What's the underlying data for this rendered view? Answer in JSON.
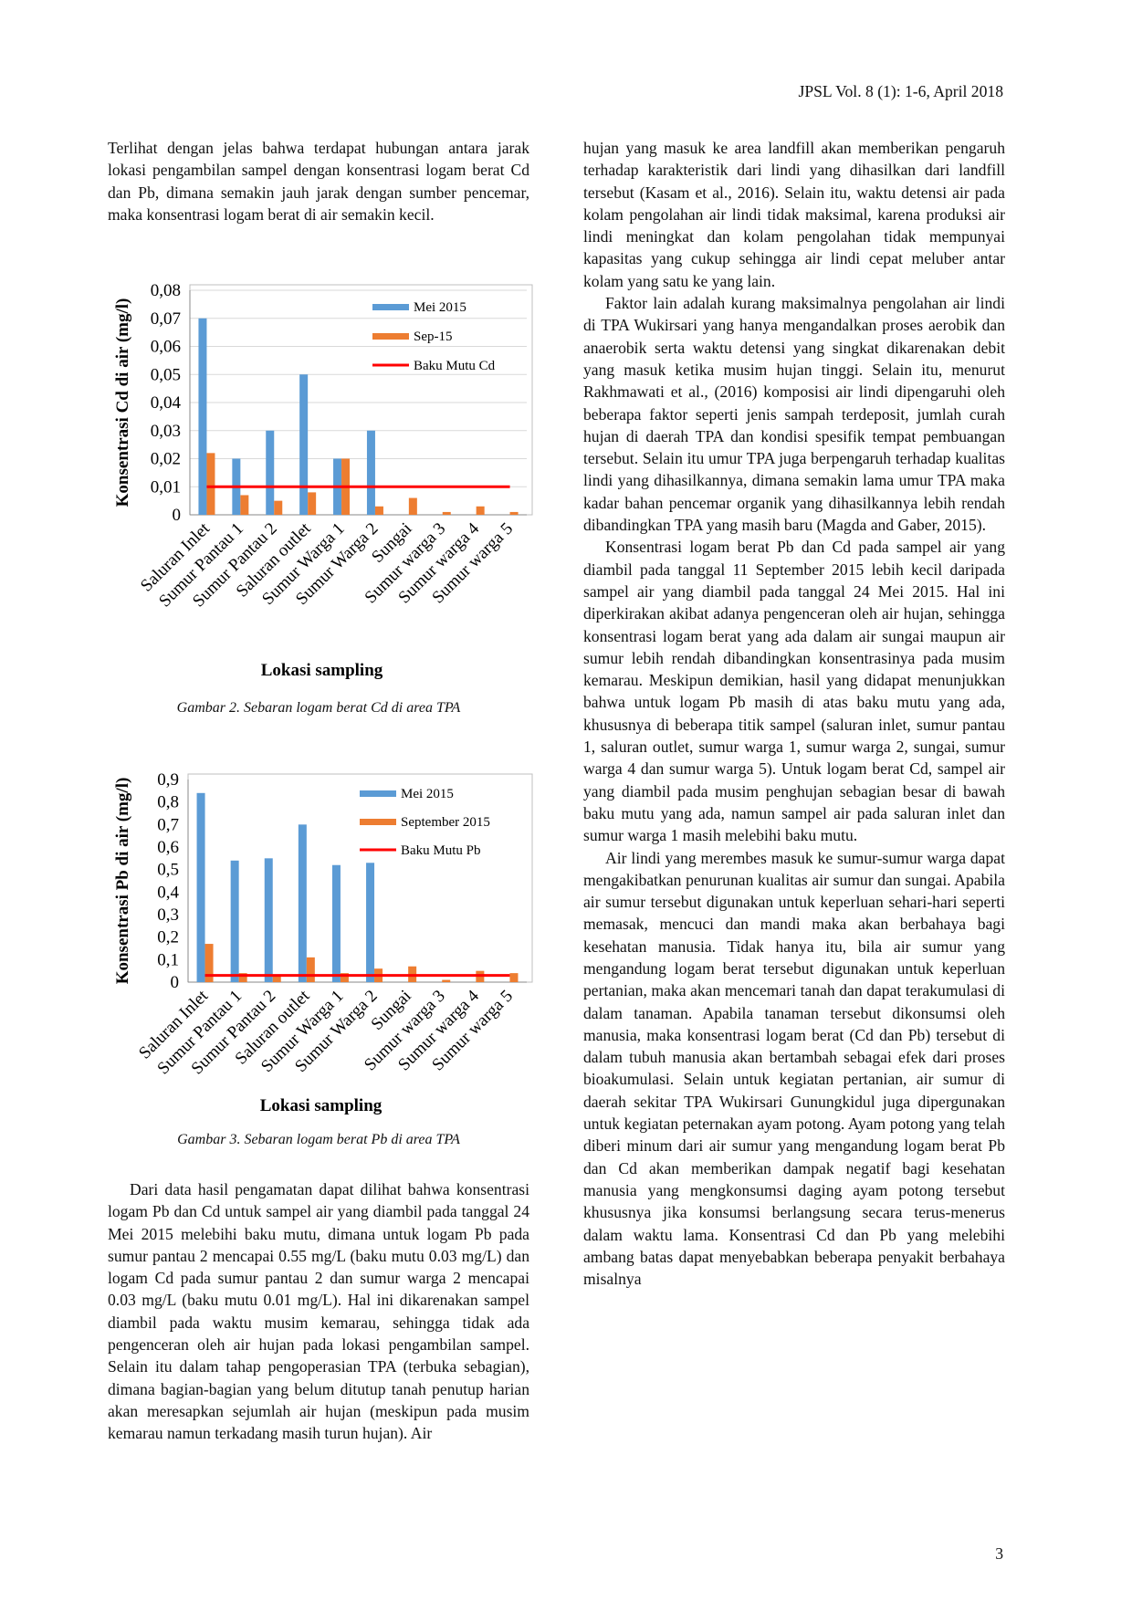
{
  "header": {
    "journal": "JPSL Vol. 8 (1): 1-6, April 2018"
  },
  "left_column": {
    "paragraphs": [
      "Terlihat dengan jelas bahwa terdapat hubungan antara jarak lokasi pengambilan sampel dengan konsentrasi logam berat Cd dan Pb, dimana semakin jauh jarak dengan sumber pencemar, maka konsentrasi logam berat di air semakin kecil.",
      "Dari data hasil pengamatan dapat dilihat bahwa konsentrasi logam Pb dan Cd untuk sampel air yang diambil pada tanggal 24 Mei 2015 melebihi baku mutu, dimana untuk logam Pb pada sumur pantau 2 mencapai 0.55 mg/L (baku mutu 0.03 mg/L) dan logam Cd pada sumur pantau 2 dan sumur warga 2 mencapai 0.03 mg/L (baku mutu 0.01 mg/L). Hal ini dikarenakan sampel diambil pada waktu musim kemarau, sehingga tidak ada pengenceran oleh air hujan pada lokasi pengambilan sampel. Selain itu dalam tahap pengoperasian TPA (terbuka sebagian), dimana bagian-bagian yang belum ditutup tanah penutup harian akan meresapkan sejumlah air hujan (meskipun pada musim kemarau namun terkadang masih turun hujan). Air"
    ]
  },
  "chart_data": [
    {
      "type": "bar",
      "ylabel": "Konsentrasi Cd di air (mg/l)",
      "xlabel": "Lokasi sampling",
      "caption": "Gambar 2. Sebaran logam berat Cd di area TPA",
      "categories": [
        "Saluran Inlet",
        "Sumur Pantau 1",
        "Sumur Pantau 2",
        "Saluran outlet",
        "Sumur Warga 1",
        "Sumur Warga 2",
        "Sungai",
        "Sumur warga 3",
        "Sumur warga 4",
        "Sumur warga 5"
      ],
      "series": [
        {
          "name": "Mei 2015",
          "type": "bar",
          "color": "#5b9bd5",
          "values": [
            0.07,
            0.02,
            0.03,
            0.05,
            0.02,
            0.03,
            null,
            null,
            null,
            null
          ]
        },
        {
          "name": "Sep-15",
          "type": "bar",
          "color": "#ed7d31",
          "values": [
            0.022,
            0.007,
            0.005,
            0.008,
            0.02,
            0.003,
            0.006,
            0.001,
            0.003,
            0.001
          ]
        },
        {
          "name": "Baku Mutu Cd",
          "type": "line",
          "color": "#ff0000",
          "values": [
            0.01,
            0.01,
            0.01,
            0.01,
            0.01,
            0.01,
            0.01,
            0.01,
            0.01,
            0.01
          ]
        }
      ],
      "ylim": [
        0,
        0.08
      ],
      "yticks": [
        0,
        {
          "value": 0.01,
          "label": "0,01"
        },
        {
          "value": 0.02,
          "label": "0,02"
        },
        {
          "value": 0.03,
          "label": "0,03"
        },
        {
          "value": 0.04,
          "label": "0,04"
        },
        {
          "value": 0.05,
          "label": "0,05"
        },
        {
          "value": 0.06,
          "label": "0,06"
        },
        {
          "value": 0.07,
          "label": "0,07"
        },
        {
          "value": 0.08,
          "label": "0,08"
        }
      ],
      "grid": true
    },
    {
      "type": "bar",
      "ylabel": "Konsentrasi Pb di air (mg/l)",
      "xlabel": "Lokasi sampling",
      "caption": "Gambar 3. Sebaran logam berat Pb di area TPA",
      "categories": [
        "Saluran Inlet",
        "Sumur Pantau 1",
        "Sumur Pantau 2",
        "Saluran outlet",
        "Sumur Warga 1",
        "Sumur Warga 2",
        "Sungai",
        "Sumur warga 3",
        "Sumur warga 4",
        "Sumur warga 5"
      ],
      "series": [
        {
          "name": "Mei 2015",
          "type": "bar",
          "color": "#5b9bd5",
          "values": [
            0.84,
            0.54,
            0.55,
            0.7,
            0.52,
            0.53,
            null,
            null,
            null,
            null
          ]
        },
        {
          "name": "September 2015",
          "type": "bar",
          "color": "#ed7d31",
          "values": [
            0.17,
            0.04,
            0.03,
            0.11,
            0.04,
            0.06,
            0.07,
            0.01,
            0.05,
            0.04
          ]
        },
        {
          "name": "Baku Mutu Pb",
          "type": "line",
          "color": "#ff0000",
          "values": [
            0.03,
            0.03,
            0.03,
            0.03,
            0.03,
            0.03,
            0.03,
            0.03,
            0.03,
            0.03
          ]
        }
      ],
      "ylim": [
        0,
        0.9
      ],
      "yticks": [
        0,
        {
          "value": 0.1,
          "label": "0,1"
        },
        {
          "value": 0.2,
          "label": "0,2"
        },
        {
          "value": 0.3,
          "label": "0,3"
        },
        {
          "value": 0.4,
          "label": "0,4"
        },
        {
          "value": 0.5,
          "label": "0,5"
        },
        {
          "value": 0.6,
          "label": "0,6"
        },
        {
          "value": 0.7,
          "label": "0,7"
        },
        {
          "value": 0.8,
          "label": "0,8"
        },
        {
          "value": 0.9,
          "label": "0,9"
        }
      ],
      "grid": false
    }
  ],
  "right_column": {
    "paragraphs": [
      "hujan yang masuk ke area landfill akan memberikan pengaruh terhadap karakteristik dari lindi yang dihasilkan dari landfill tersebut (Kasam et al., 2016). Selain itu, waktu detensi air pada kolam pengolahan air lindi tidak maksimal, karena produksi air lindi meningkat dan kolam pengolahan tidak mempunyai kapasitas yang cukup sehingga air lindi cepat meluber antar kolam yang satu ke yang lain.",
      "Faktor lain adalah kurang maksimalnya pengolahan air lindi di TPA Wukirsari yang hanya mengandalkan proses aerobik dan anaerobik serta waktu detensi yang singkat dikarenakan debit yang masuk ketika musim hujan tinggi. Selain itu, menurut Rakhmawati et al., (2016) komposisi air lindi dipengaruhi oleh beberapa faktor seperti jenis sampah terdeposit, jumlah curah hujan di daerah TPA dan kondisi spesifik tempat pembuangan tersebut. Selain itu umur TPA juga berpengaruh terhadap kualitas lindi yang dihasilkannya, dimana semakin lama umur TPA maka kadar bahan pencemar organik yang dihasilkannya lebih rendah dibandingkan TPA yang masih baru (Magda and Gaber, 2015).",
      "Konsentrasi logam berat Pb dan Cd pada sampel air yang diambil pada tanggal 11 September 2015 lebih kecil daripada sampel air yang diambil pada tanggal 24 Mei 2015. Hal ini diperkirakan akibat adanya pengenceran oleh air hujan, sehingga konsentrasi logam berat yang ada dalam air sungai maupun air sumur lebih rendah dibandingkan konsentrasinya pada musim kemarau. Meskipun demikian, hasil yang didapat menunjukkan bahwa untuk logam Pb masih di atas baku mutu yang ada, khususnya di beberapa titik sampel (saluran inlet, sumur pantau 1, saluran outlet, sumur warga 1, sumur warga 2, sungai, sumur warga 4 dan sumur warga 5). Untuk logam berat Cd, sampel air yang diambil pada musim penghujan sebagian besar di bawah baku mutu yang ada, namun sampel air pada saluran inlet dan sumur warga 1 masih melebihi baku mutu.",
      "Air lindi yang merembes masuk ke sumur-sumur warga dapat mengakibatkan penurunan kualitas air sumur dan sungai. Apabila air sumur tersebut digunakan untuk keperluan sehari-hari seperti memasak, mencuci dan mandi maka akan berbahaya bagi kesehatan manusia. Tidak hanya itu, bila air sumur yang mengandung logam berat tersebut digunakan untuk keperluan pertanian, maka akan mencemari tanah dan dapat terakumulasi di dalam tanaman. Apabila tanaman tersebut dikonsumsi oleh manusia, maka konsentrasi logam berat (Cd dan Pb) tersebut di dalam tubuh manusia akan bertambah sebagai efek dari proses bioakumulasi. Selain untuk kegiatan pertanian, air sumur di daerah sekitar TPA Wukirsari Gunungkidul juga dipergunakan untuk kegiatan peternakan ayam potong. Ayam potong yang telah diberi minum dari air sumur yang mengandung logam berat Pb dan Cd akan memberikan dampak negatif bagi kesehatan manusia yang mengkonsumsi daging ayam potong tersebut khususnya jika konsumsi berlangsung secara terus-menerus dalam waktu lama. Konsentrasi Cd dan Pb yang melebihi ambang batas dapat menyebabkan beberapa penyakit berbahaya misalnya"
    ]
  },
  "page_number": "3"
}
